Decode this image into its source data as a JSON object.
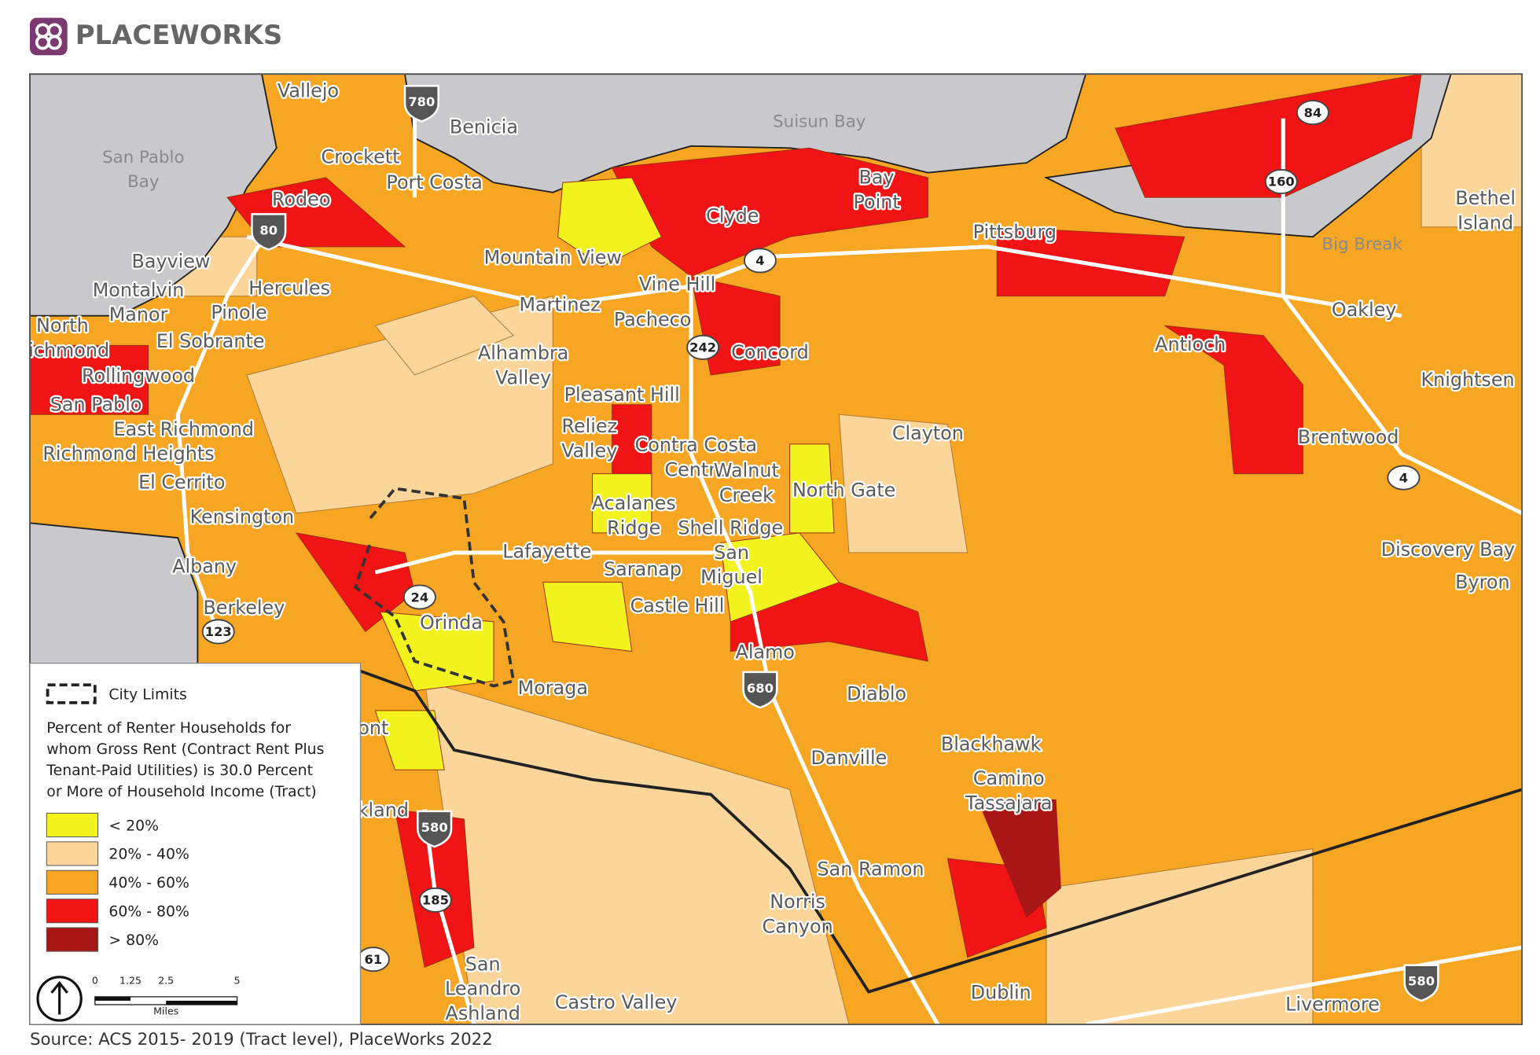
{
  "header": {
    "brand": "PLACEWORKS"
  },
  "map": {
    "places": [
      [
        "Vallejo"
      ],
      [
        "Benicia"
      ],
      [
        "Suisun Bay"
      ],
      [
        "San Pablo",
        "Bay"
      ],
      [
        "Crockett"
      ],
      [
        "Port Costa"
      ],
      [
        "Rodeo"
      ],
      [
        "Bay",
        "Point"
      ],
      [
        "Clyde"
      ],
      [
        "Pittsburg"
      ],
      [
        "Bethel",
        "Island"
      ],
      [
        "Big Break"
      ],
      [
        "Mountain View"
      ],
      [
        "Vine Hill"
      ],
      [
        "Bayview"
      ],
      [
        "Montalvin",
        "Manor"
      ],
      [
        "Hercules"
      ],
      [
        "Pinole"
      ],
      [
        "Martinez"
      ],
      [
        "Pacheco"
      ],
      [
        "Oakley"
      ],
      [
        "North",
        "Richmond"
      ],
      [
        "El Sobrante"
      ],
      [
        "Concord"
      ],
      [
        "Antioch"
      ],
      [
        "Alhambra",
        "Valley"
      ],
      [
        "Rollingwood"
      ],
      [
        "Knightsen"
      ],
      [
        "San Pablo"
      ],
      [
        "Pleasant Hill"
      ],
      [
        "East Richmond"
      ],
      [
        "Richmond  Heights"
      ],
      [
        "Reliez",
        "Valley"
      ],
      [
        "Contra Costa",
        "Centre"
      ],
      [
        "Clayton"
      ],
      [
        "Brentwood"
      ],
      [
        "Walnut",
        "Creek"
      ],
      [
        "El Cerrito"
      ],
      [
        "North Gate"
      ],
      [
        "Acalanes",
        "Ridge"
      ],
      [
        "Shell Ridge"
      ],
      [
        "Kensington"
      ],
      [
        "San",
        "Miguel"
      ],
      [
        "Lafayette"
      ],
      [
        "Discovery Bay"
      ],
      [
        "Saranap"
      ],
      [
        "Albany"
      ],
      [
        "Byron"
      ],
      [
        "Berkeley"
      ],
      [
        "Castle Hill"
      ],
      [
        "Orinda"
      ],
      [
        "Alamo"
      ],
      [
        "Moraga"
      ],
      [
        "Diablo"
      ],
      [
        "Blackhawk"
      ],
      [
        "Danville"
      ],
      [
        "Camino",
        "Tassajara"
      ],
      [
        "ont"
      ],
      [
        "kland"
      ],
      [
        "San Ramon"
      ],
      [
        "Norris",
        "Canyon"
      ],
      [
        "Dublin"
      ],
      [
        "Castro Valley"
      ],
      [
        "Livermore"
      ],
      [
        "San",
        "Leandro",
        "Ashland"
      ]
    ],
    "highways": [
      "780",
      "80",
      "4",
      "242",
      "24",
      "123",
      "680",
      "580",
      "185",
      "61",
      "84",
      "160",
      "4",
      "580"
    ]
  },
  "legend": {
    "city_limits": "City Limits",
    "title": [
      "Percent of Renter Households for",
      "whom Gross Rent (Contract Rent Plus",
      "Tenant-Paid Utilities) is 30.0 Percent",
      "or More of Household Income (Tract)"
    ],
    "classes": [
      {
        "label": "< 20%",
        "color": "#f2f21e"
      },
      {
        "label": "20% - 40%",
        "color": "#fcd59b"
      },
      {
        "label": "40% - 60%",
        "color": "#f6a623"
      },
      {
        "label": "60% - 80%",
        "color": "#f01414"
      },
      {
        "label": "> 80%",
        "color": "#a81616"
      }
    ],
    "scale": {
      "ticks": [
        "0",
        "1.25",
        "2.5",
        "5"
      ],
      "unit": "Miles"
    }
  },
  "source": "Source: ACS 2015- 2019 (Tract level), PlaceWorks 2022"
}
